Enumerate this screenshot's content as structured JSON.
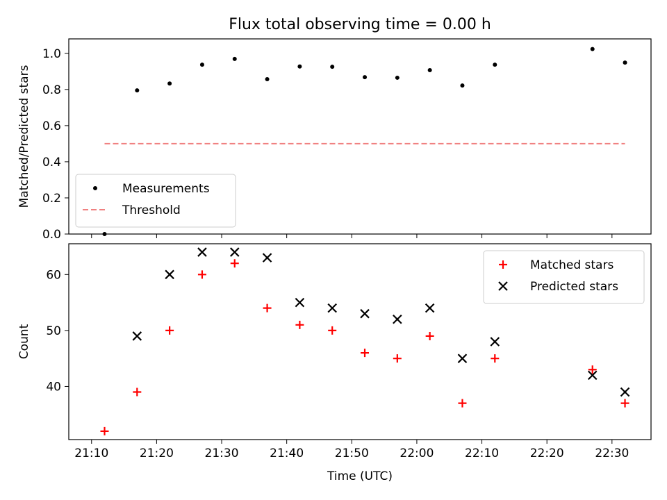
{
  "chart_data": [
    {
      "type": "scatter",
      "title": "Flux total observing time = 0.00 h",
      "ylabel": "Matched/Predicted stars",
      "xlabel": "",
      "x_ticks": [
        "21:10",
        "21:20",
        "21:30",
        "21:40",
        "21:50",
        "22:00",
        "22:10",
        "22:20",
        "22:30"
      ],
      "y_ticks": [
        "0.0",
        "0.2",
        "0.4",
        "0.6",
        "0.8",
        "1.0"
      ],
      "ylim": [
        0,
        1.08
      ],
      "xlim": [
        "21:06.5",
        "22:36"
      ],
      "grid": false,
      "legend_position": "lower-left",
      "series": [
        {
          "name": "Measurements",
          "marker": "dot",
          "color": "#000000",
          "points": [
            {
              "x": "21:12",
              "y": 0.0
            },
            {
              "x": "21:17",
              "y": 0.795
            },
            {
              "x": "21:22",
              "y": 0.833
            },
            {
              "x": "21:27",
              "y": 0.9375
            },
            {
              "x": "21:32",
              "y": 0.969
            },
            {
              "x": "21:37",
              "y": 0.857
            },
            {
              "x": "21:42",
              "y": 0.927
            },
            {
              "x": "21:47",
              "y": 0.926
            },
            {
              "x": "21:52",
              "y": 0.868
            },
            {
              "x": "21:57",
              "y": 0.865
            },
            {
              "x": "22:02",
              "y": 0.907
            },
            {
              "x": "22:07",
              "y": 0.822
            },
            {
              "x": "22:12",
              "y": 0.9375
            },
            {
              "x": "22:27",
              "y": 1.024
            },
            {
              "x": "22:32",
              "y": 0.949
            }
          ]
        },
        {
          "name": "Threshold",
          "marker": "dashed-line",
          "color": "#f08080",
          "points": [
            {
              "x": "21:12",
              "y": 0.5
            },
            {
              "x": "22:32",
              "y": 0.5
            }
          ]
        }
      ]
    },
    {
      "type": "scatter",
      "title": "",
      "ylabel": "Count",
      "xlabel": "Time (UTC)",
      "x_ticks": [
        "21:10",
        "21:20",
        "21:30",
        "21:40",
        "21:50",
        "22:00",
        "22:10",
        "22:20",
        "22:30"
      ],
      "y_ticks": [
        "40",
        "50",
        "60"
      ],
      "ylim": [
        30.5,
        65.5
      ],
      "xlim": [
        "21:06.5",
        "22:36"
      ],
      "grid": false,
      "legend_position": "top-right",
      "series": [
        {
          "name": "Matched stars",
          "marker": "plus",
          "color": "#ff0000",
          "points": [
            {
              "x": "21:12",
              "y": 32
            },
            {
              "x": "21:17",
              "y": 39
            },
            {
              "x": "21:22",
              "y": 50
            },
            {
              "x": "21:27",
              "y": 60
            },
            {
              "x": "21:32",
              "y": 62
            },
            {
              "x": "21:37",
              "y": 54
            },
            {
              "x": "21:42",
              "y": 51
            },
            {
              "x": "21:47",
              "y": 50
            },
            {
              "x": "21:52",
              "y": 46
            },
            {
              "x": "21:57",
              "y": 45
            },
            {
              "x": "22:02",
              "y": 49
            },
            {
              "x": "22:07",
              "y": 37
            },
            {
              "x": "22:12",
              "y": 45
            },
            {
              "x": "22:27",
              "y": 43
            },
            {
              "x": "22:32",
              "y": 37
            }
          ]
        },
        {
          "name": "Predicted stars",
          "marker": "x",
          "color": "#000000",
          "points": [
            {
              "x": "21:17",
              "y": 49
            },
            {
              "x": "21:22",
              "y": 60
            },
            {
              "x": "21:27",
              "y": 64
            },
            {
              "x": "21:32",
              "y": 64
            },
            {
              "x": "21:37",
              "y": 63
            },
            {
              "x": "21:42",
              "y": 55
            },
            {
              "x": "21:47",
              "y": 54
            },
            {
              "x": "21:52",
              "y": 53
            },
            {
              "x": "21:57",
              "y": 52
            },
            {
              "x": "22:02",
              "y": 54
            },
            {
              "x": "22:07",
              "y": 45
            },
            {
              "x": "22:12",
              "y": 48
            },
            {
              "x": "22:27",
              "y": 42
            },
            {
              "x": "22:32",
              "y": 39
            }
          ]
        }
      ]
    }
  ]
}
